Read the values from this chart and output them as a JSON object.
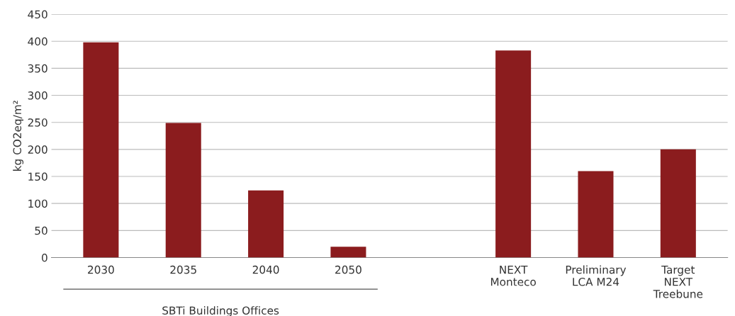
{
  "chart_data": {
    "type": "bar",
    "ylabel": "kg CO2eq/m²",
    "categories": [
      "2030",
      "2035",
      "2040",
      "2050",
      null,
      "NEXT\nMonteco",
      "Preliminary\nLCA M24",
      "Target\nNEXT\nTreebune"
    ],
    "values": [
      398,
      249,
      124,
      20,
      null,
      383,
      160,
      200
    ],
    "color": "#8b1c1e",
    "ylim": [
      0,
      450
    ],
    "yticks": [
      0,
      50,
      100,
      150,
      200,
      250,
      300,
      350,
      400,
      450
    ],
    "grid": "y",
    "annotations": [
      "SBTi Buildings Offices"
    ]
  }
}
